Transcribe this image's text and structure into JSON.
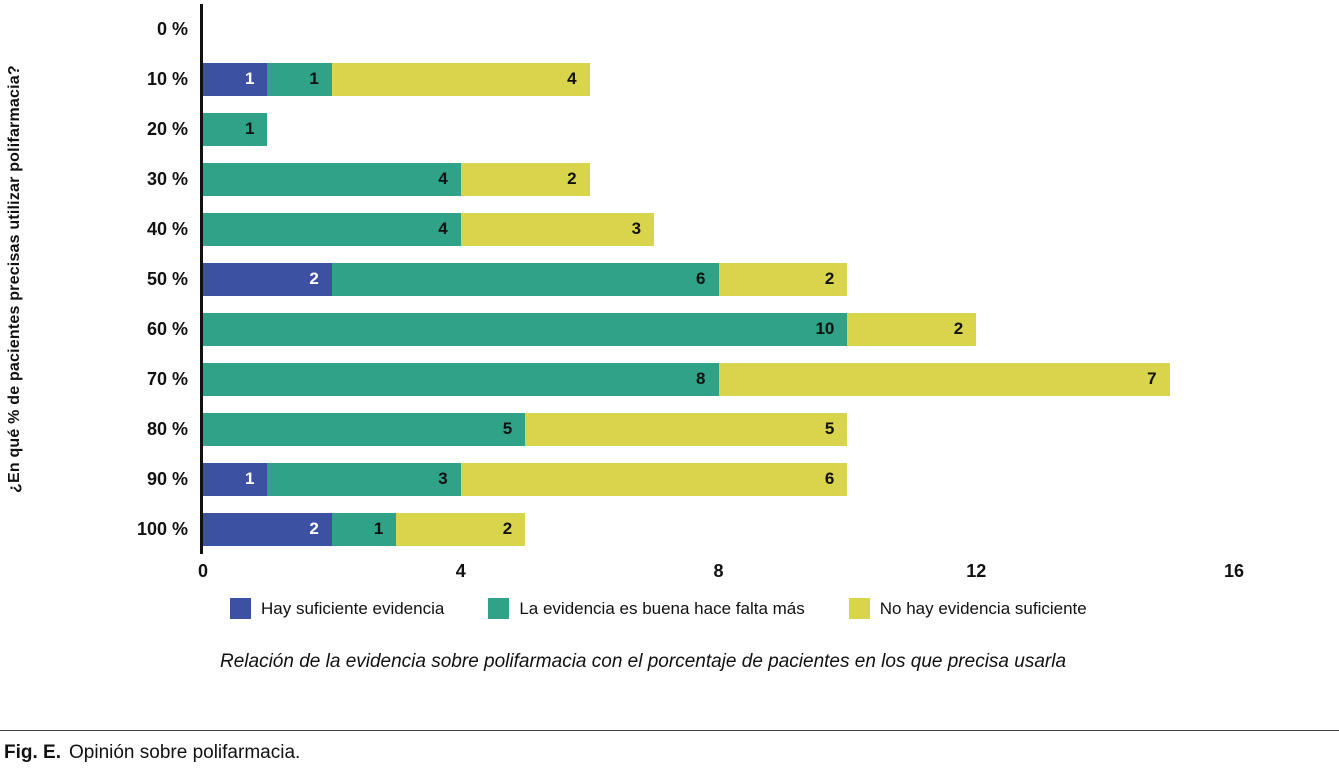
{
  "chart_data": {
    "type": "bar",
    "orientation": "horizontal",
    "stacked": true,
    "title": "",
    "xlabel": "",
    "ylabel": "¿En qué % de pacientes precisas utilizar polifarmacia?",
    "categories": [
      "0 %",
      "10 %",
      "20 %",
      "30 %",
      "40 %",
      "50 %",
      "60 %",
      "70 %",
      "80 %",
      "90 %",
      "100 %"
    ],
    "series": [
      {
        "name": "Hay suficiente evidencia",
        "color": "#3c51a2",
        "text_color": "#ffffff",
        "values": [
          0,
          1,
          0,
          0,
          0,
          2,
          0,
          0,
          0,
          1,
          2
        ]
      },
      {
        "name": "La evidencia es buena hace falta más",
        "color": "#2fa287",
        "text_color": "#111111",
        "values": [
          0,
          1,
          1,
          4,
          4,
          6,
          10,
          8,
          5,
          3,
          1
        ]
      },
      {
        "name": "No hay evidencia suficiente",
        "color": "#d8d44c",
        "text_color": "#111111",
        "values": [
          0,
          4,
          0,
          2,
          3,
          2,
          2,
          7,
          5,
          6,
          2
        ]
      }
    ],
    "xlim": [
      0,
      16
    ],
    "xticks": [
      0,
      4,
      8,
      12,
      16
    ],
    "grid": false,
    "legend_position": "bottom",
    "caption": "Relación de la evidencia sobre polifarmacia con el porcentaje de pacientes en los que precisa usarla"
  },
  "figure": {
    "label": "Fig. E.",
    "title": "Opinión sobre polifarmacia."
  }
}
